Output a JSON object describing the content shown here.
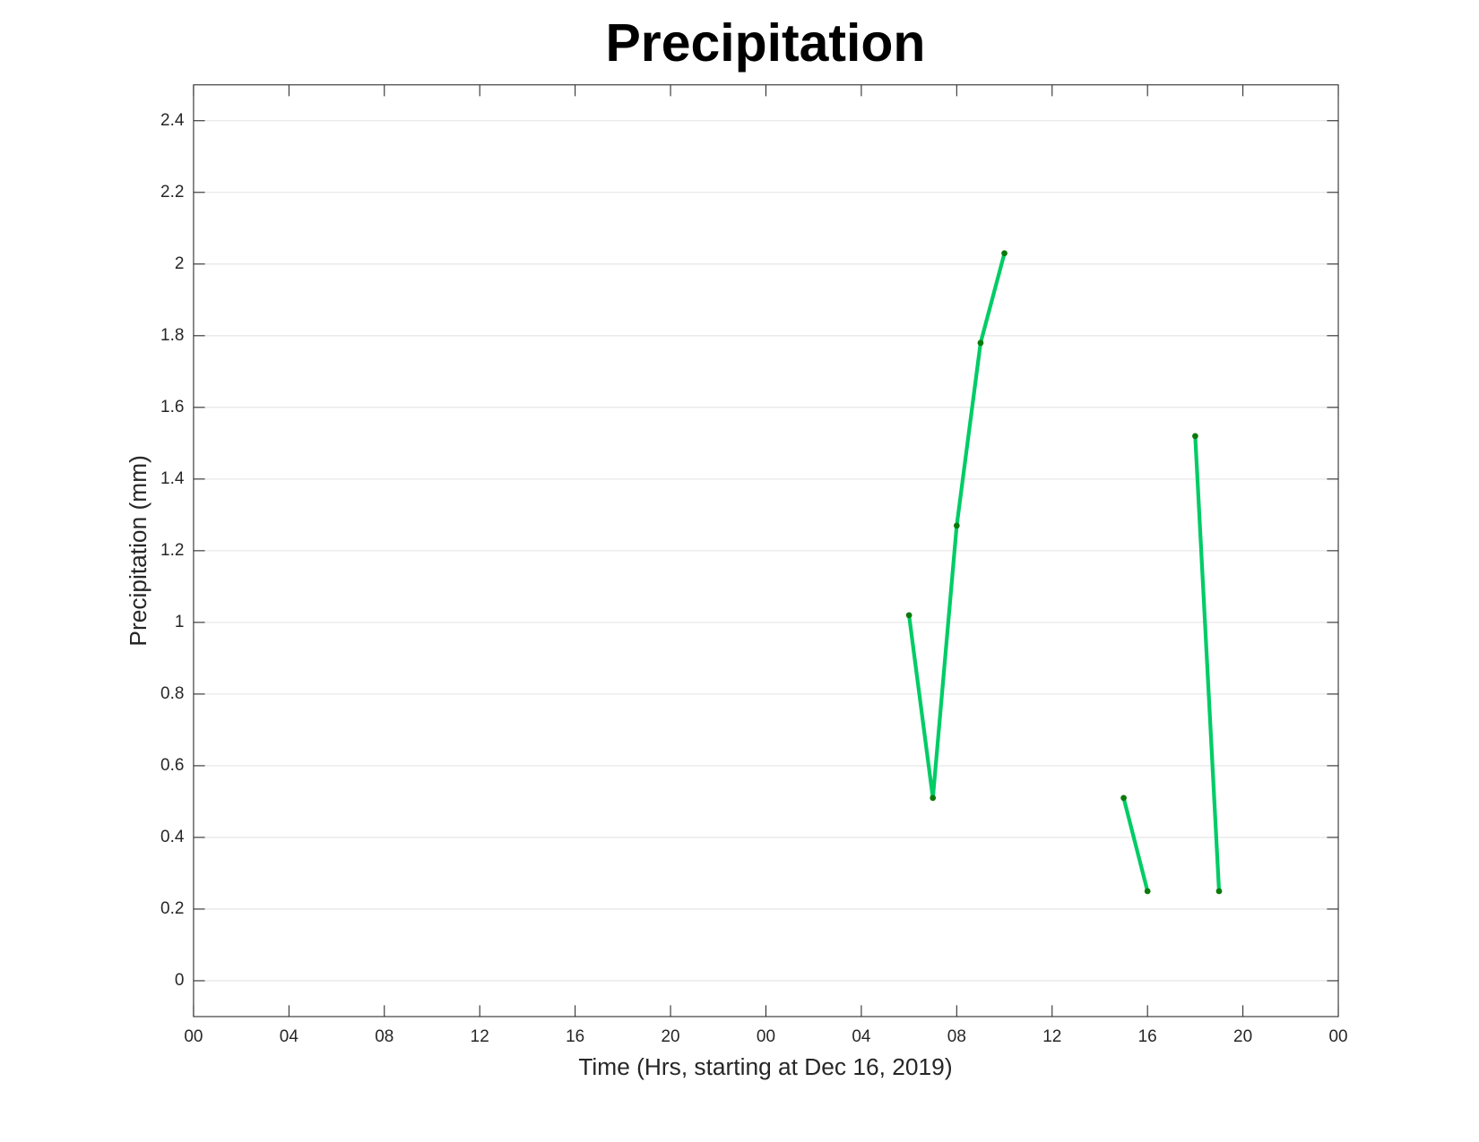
{
  "chart_data": {
    "type": "line",
    "title": "Precipitation",
    "xlabel": "Time (Hrs, starting at Dec 16, 2019)",
    "ylabel": "Precipitation (mm)",
    "x": [
      30,
      31,
      32,
      33,
      34,
      35,
      39,
      40,
      41,
      42,
      43
    ],
    "values": [
      1.02,
      0.51,
      1.27,
      1.78,
      2.03,
      null,
      0.51,
      0.25,
      null,
      1.52,
      0.25
    ],
    "color": "#00cc66",
    "marker_color": "#0a7a0a",
    "xlim": [
      0,
      48
    ],
    "xticks": [
      {
        "value": 0,
        "label": "00"
      },
      {
        "value": 4,
        "label": "04"
      },
      {
        "value": 8,
        "label": "08"
      },
      12,
      16,
      20,
      {
        "value": 24,
        "label": "00"
      },
      {
        "value": 28,
        "label": "04"
      },
      {
        "value": 32,
        "label": "08"
      },
      {
        "value": 36,
        "label": "12"
      },
      {
        "value": 40,
        "label": "16"
      },
      {
        "value": 44,
        "label": "20"
      },
      {
        "value": 48,
        "label": "00"
      }
    ],
    "ylim": [
      -0.1,
      2.5
    ],
    "yticks": [
      0,
      0.2,
      0.4,
      0.6,
      0.8,
      1,
      1.2,
      1.4,
      1.6,
      1.8,
      2,
      2.2,
      2.4
    ],
    "grid": "y"
  }
}
